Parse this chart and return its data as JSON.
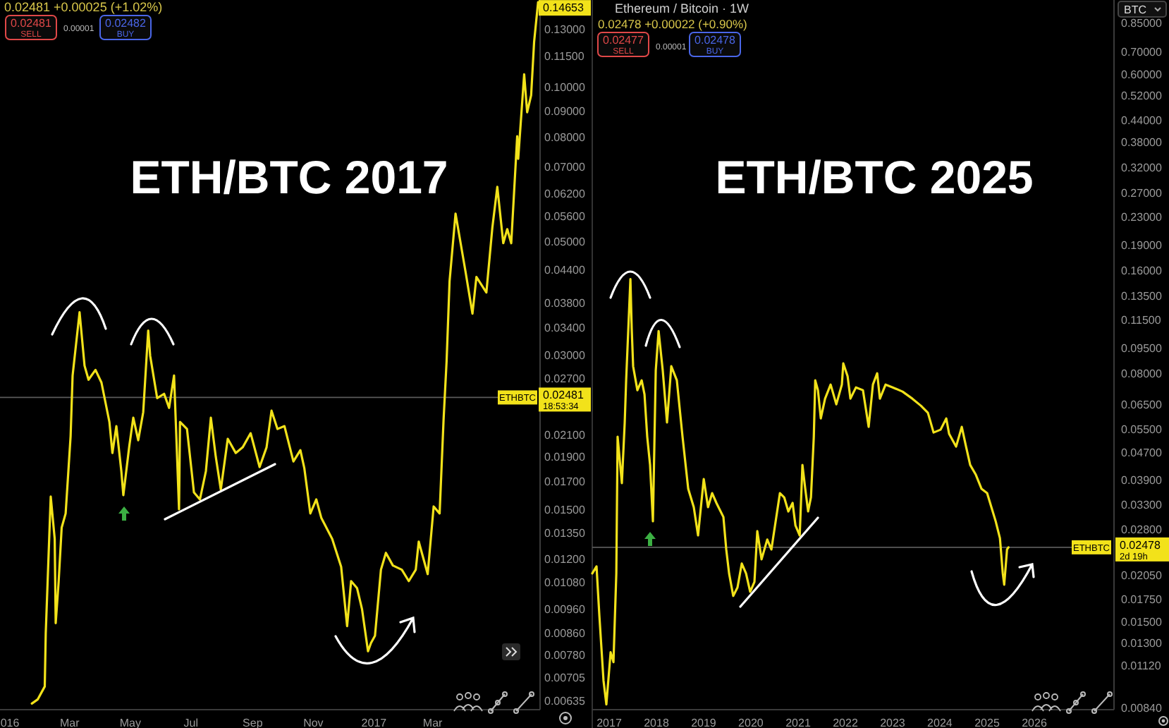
{
  "chart_data": [
    {
      "type": "line",
      "title": "ETH/BTC 2017",
      "log": true,
      "x": [
        "2016-01-23",
        "2016-01-29",
        "2016-02-05",
        "2016-02-06",
        "2016-02-11",
        "2016-02-15",
        "2016-02-16",
        "2016-02-19",
        "2016-02-22",
        "2016-02-26",
        "2016-03-02",
        "2016-03-04",
        "2016-03-11",
        "2016-03-16",
        "2016-03-20",
        "2016-03-27",
        "2016-04-02",
        "2016-04-10",
        "2016-04-13",
        "2016-04-17",
        "2016-04-22",
        "2016-04-24",
        "2016-04-30",
        "2016-05-04",
        "2016-05-09",
        "2016-05-14",
        "2016-05-19",
        "2016-05-21",
        "2016-05-28",
        "2016-06-04",
        "2016-06-09",
        "2016-06-14",
        "2016-06-19",
        "2016-06-20",
        "2016-06-27",
        "2016-07-04",
        "2016-07-10",
        "2016-07-16",
        "2016-07-21",
        "2016-07-26",
        "2016-07-31",
        "2016-08-07",
        "2016-08-15",
        "2016-08-22",
        "2016-08-30",
        "2016-09-08",
        "2016-09-15",
        "2016-09-20",
        "2016-09-26",
        "2016-10-03",
        "2016-10-12",
        "2016-10-19",
        "2016-10-23",
        "2016-10-29",
        "2016-11-04",
        "2016-11-09",
        "2016-11-20",
        "2016-11-29",
        "2016-12-05",
        "2016-12-09",
        "2016-12-15",
        "2016-12-20",
        "2016-12-26",
        "2016-12-29",
        "2017-01-02",
        "2017-01-08",
        "2017-01-13",
        "2017-01-20",
        "2017-01-29",
        "2017-02-05",
        "2017-02-12",
        "2017-02-15",
        "2017-02-24",
        "2017-03-02",
        "2017-03-08",
        "2017-03-12",
        "2017-03-15",
        "2017-03-18",
        "2017-03-24",
        "2017-04-03",
        "2017-04-10",
        "2017-04-14",
        "2017-04-24",
        "2017-04-30",
        "2017-05-05",
        "2017-05-11",
        "2017-05-15",
        "2017-05-19",
        "2017-05-25",
        "2017-05-26",
        "2017-06-01",
        "2017-06-04",
        "2017-06-08",
        "2017-06-11",
        "2017-06-15"
      ],
      "series": [
        {
          "color": "#f2e21a",
          "values": [
            0.00627,
            0.00639,
            0.00677,
            0.00861,
            0.01589,
            0.01314,
            0.009,
            0.01087,
            0.01382,
            0.01473,
            0.02086,
            0.02738,
            0.03639,
            0.02862,
            0.02687,
            0.02808,
            0.02653,
            0.02222,
            0.01933,
            0.02181,
            0.01781,
            0.01599,
            0.01995,
            0.02265,
            0.02047,
            0.02323,
            0.03352,
            0.02991,
            0.02474,
            0.02522,
            0.02367,
            0.02738,
            0.01501,
            0.02222,
            0.02153,
            0.01619,
            0.01569,
            0.01781,
            0.02265,
            0.01897,
            0.0164,
            0.0206,
            0.01933,
            0.01983,
            0.02113,
            0.01815,
            0.01983,
            0.02338,
            0.02153,
            0.02181,
            0.01861,
            0.01958,
            0.01804,
            0.01473,
            0.01569,
            0.01445,
            0.01314,
            0.01159,
            0.00888,
            0.01087,
            0.01053,
            0.00958,
            0.00793,
            0.00823,
            0.0085,
            0.01144,
            0.01234,
            0.01166,
            0.01144,
            0.01087,
            0.01144,
            0.01298,
            0.01122,
            0.0152,
            0.01473,
            0.02251,
            0.02916,
            0.04183,
            0.05667,
            0.04372,
            0.03616,
            0.04263,
            0.03976,
            0.05319,
            0.0639,
            0.04962,
            0.05286,
            0.04962,
            0.08024,
            0.07252,
            0.10599,
            0.08936,
            0.0964,
            0.12258,
            0.14653
          ]
        }
      ],
      "xlim": [
        "2015-12-22",
        "2017-06-17"
      ],
      "xticks": [
        {
          "value": "2016-01-01",
          "label": "016"
        },
        {
          "value": "2016-03-01",
          "label": "Mar"
        },
        {
          "value": "2016-05-01",
          "label": "May"
        },
        {
          "value": "2016-07-01",
          "label": "Jul"
        },
        {
          "value": "2016-09-01",
          "label": "Sep"
        },
        {
          "value": "2016-11-01",
          "label": "Nov"
        },
        {
          "value": "2017-01-01",
          "label": "2017"
        },
        {
          "value": "2017-03-01",
          "label": "Mar"
        }
      ],
      "ylim": [
        0.0061,
        0.148
      ],
      "yticks": [
        {
          "value": 0.13,
          "label": "0.13000"
        },
        {
          "value": 0.115,
          "label": "0.11500"
        },
        {
          "value": 0.1,
          "label": "0.10000"
        },
        {
          "value": 0.09,
          "label": "0.09000"
        },
        {
          "value": 0.08,
          "label": "0.08000"
        },
        {
          "value": 0.07,
          "label": "0.07000"
        },
        {
          "value": 0.062,
          "label": "0.06200"
        },
        {
          "value": 0.056,
          "label": "0.05600"
        },
        {
          "value": 0.05,
          "label": "0.05000"
        },
        {
          "value": 0.044,
          "label": "0.04400"
        },
        {
          "value": 0.038,
          "label": "0.03800"
        },
        {
          "value": 0.034,
          "label": "0.03400"
        },
        {
          "value": 0.03,
          "label": "0.03000"
        },
        {
          "value": 0.027,
          "label": "0.02700"
        },
        {
          "value": 0.021,
          "label": "0.02100"
        },
        {
          "value": 0.019,
          "label": "0.01900"
        },
        {
          "value": 0.017,
          "label": "0.01700"
        },
        {
          "value": 0.015,
          "label": "0.01500"
        },
        {
          "value": 0.0135,
          "label": "0.01350"
        },
        {
          "value": 0.012,
          "label": "0.01200"
        },
        {
          "value": 0.0108,
          "label": "0.01080"
        },
        {
          "value": 0.0096,
          "label": "0.00960"
        },
        {
          "value": 0.0086,
          "label": "0.00860"
        },
        {
          "value": 0.0078,
          "label": "0.00780"
        },
        {
          "value": 0.00705,
          "label": "0.00705"
        },
        {
          "value": 0.00635,
          "label": "0.00635"
        }
      ],
      "ref_lines": [
        {
          "axis": "y",
          "value": 0.02481,
          "label": "ETHBTC"
        }
      ],
      "annotations": [
        "0.02481 +0.00025 (+1.02%)",
        "0.02481",
        "SELL",
        "0.00001",
        "0.02482",
        "BUY",
        "18:53:34",
        {
          "text": "0.14653",
          "x": "2017-06-15",
          "y": 0.14653
        }
      ]
    },
    {
      "type": "line",
      "title": "ETH/BTC 2025",
      "log": true,
      "x": [
        "2016-08-23",
        "2016-09-25",
        "2016-10-17",
        "2016-11-18",
        "2016-12-10",
        "2017-01-12",
        "2017-02-03",
        "2017-02-25",
        "2017-03-07",
        "2017-04-09",
        "2017-05-01",
        "2017-05-12",
        "2017-06-14",
        "2017-06-24",
        "2017-07-05",
        "2017-08-07",
        "2017-09-09",
        "2017-10-01",
        "2017-10-22",
        "2017-11-13",
        "2017-12-05",
        "2017-12-16",
        "2017-12-27",
        "2018-01-18",
        "2018-02-19",
        "2018-03-24",
        "2018-04-26",
        "2018-06-08",
        "2018-07-22",
        "2018-09-04",
        "2018-10-17",
        "2018-11-19",
        "2019-01-02",
        "2019-02-04",
        "2019-03-08",
        "2019-04-10",
        "2019-06-03",
        "2019-06-25",
        "2019-07-17",
        "2019-08-18",
        "2019-09-20",
        "2019-10-23",
        "2019-11-25",
        "2019-12-27",
        "2020-01-29",
        "2020-02-20",
        "2020-03-24",
        "2020-05-07",
        "2020-06-08",
        "2020-08-13",
        "2020-09-15",
        "2020-10-17",
        "2020-11-19",
        "2020-12-11",
        "2021-01-13",
        "2021-02-03",
        "2021-02-25",
        "2021-03-19",
        "2021-04-10",
        "2021-05-02",
        "2021-05-13",
        "2021-06-03",
        "2021-06-25",
        "2021-07-28",
        "2021-09-09",
        "2021-10-23",
        "2021-12-05",
        "2021-12-16",
        "2022-01-18",
        "2022-02-09",
        "2022-03-24",
        "2022-05-17",
        "2022-06-30",
        "2022-08-02",
        "2022-09-04",
        "2022-09-25",
        "2022-11-08",
        "2023-01-02",
        "2023-03-19",
        "2023-06-03",
        "2023-08-08",
        "2023-10-01",
        "2023-11-14",
        "2024-01-07",
        "2024-02-20",
        "2024-03-13",
        "2024-05-06",
        "2024-06-19",
        "2024-07-22",
        "2024-08-23",
        "2024-10-06",
        "2024-11-19",
        "2025-01-01",
        "2025-02-03",
        "2025-03-08",
        "2025-04-10",
        "2025-05-02",
        "2025-05-13",
        "2025-06-04",
        "2025-06-15"
      ],
      "series": [
        {
          "color": "#f2e21a",
          "values": [
            0.02078,
            0.02179,
            0.01563,
            0.0101,
            0.0086,
            0.01222,
            0.01143,
            0.02078,
            0.05222,
            0.03818,
            0.05744,
            0.07635,
            0.151,
            0.10847,
            0.08394,
            0.07143,
            0.07635,
            0.06942,
            0.05222,
            0.04317,
            0.02954,
            0.04885,
            0.08158,
            0.10643,
            0.08158,
            0.05744,
            0.08394,
            0.07635,
            0.05222,
            0.03673,
            0.03247,
            0.02685,
            0.03926,
            0.03247,
            0.0357,
            0.03341,
            0.0304,
            0.02442,
            0.02078,
            0.01786,
            0.01891,
            0.02221,
            0.02078,
            0.01836,
            0.01963,
            0.02763,
            0.02285,
            0.02611,
            0.02442,
            0.0357,
            0.0347,
            0.03156,
            0.03341,
            0.0287,
            0.02685,
            0.04317,
            0.03673,
            0.03156,
            0.0347,
            0.05222,
            0.07635,
            0.07143,
            0.05907,
            0.06746,
            0.07419,
            0.06495,
            0.07419,
            0.08555,
            0.07854,
            0.06746,
            0.07279,
            0.07143,
            0.0558,
            0.07419,
            0.08005,
            0.06746,
            0.07419,
            0.07279,
            0.07075,
            0.06746,
            0.06434,
            0.06137,
            0.05371,
            0.05474,
            0.05907,
            0.05321,
            0.04885,
            0.0558,
            0.04885,
            0.04317,
            0.0404,
            0.03673,
            0.0357,
            0.03247,
            0.02954,
            0.02636,
            0.02078,
            0.01926,
            0.02442,
            0.02478
          ]
        }
      ],
      "xlim": [
        "2016-08-23",
        "2027-09-09"
      ],
      "xticks": [
        {
          "value": "2017-01-01",
          "label": "2017"
        },
        {
          "value": "2018-01-01",
          "label": "2018"
        },
        {
          "value": "2019-01-01",
          "label": "2019"
        },
        {
          "value": "2020-01-01",
          "label": "2020"
        },
        {
          "value": "2021-01-01",
          "label": "2021"
        },
        {
          "value": "2022-01-01",
          "label": "2022"
        },
        {
          "value": "2023-01-01",
          "label": "2023"
        },
        {
          "value": "2024-01-01",
          "label": "2024"
        },
        {
          "value": "2025-01-01",
          "label": "2025"
        },
        {
          "value": "2026-01-01",
          "label": "2026"
        }
      ],
      "ylim": [
        0.0083,
        0.99
      ],
      "yticks": [
        {
          "value": 0.85,
          "label": "0.85000"
        },
        {
          "value": 0.7,
          "label": "0.70000"
        },
        {
          "value": 0.6,
          "label": "0.60000"
        },
        {
          "value": 0.52,
          "label": "0.52000"
        },
        {
          "value": 0.44,
          "label": "0.44000"
        },
        {
          "value": 0.38,
          "label": "0.38000"
        },
        {
          "value": 0.32,
          "label": "0.32000"
        },
        {
          "value": 0.27,
          "label": "0.27000"
        },
        {
          "value": 0.23,
          "label": "0.23000"
        },
        {
          "value": 0.19,
          "label": "0.19000"
        },
        {
          "value": 0.16,
          "label": "0.16000"
        },
        {
          "value": 0.135,
          "label": "0.13500"
        },
        {
          "value": 0.115,
          "label": "0.11500"
        },
        {
          "value": 0.095,
          "label": "0.09500"
        },
        {
          "value": 0.08,
          "label": "0.08000"
        },
        {
          "value": 0.065,
          "label": "0.06500"
        },
        {
          "value": 0.055,
          "label": "0.05500"
        },
        {
          "value": 0.047,
          "label": "0.04700"
        },
        {
          "value": 0.039,
          "label": "0.03900"
        },
        {
          "value": 0.033,
          "label": "0.03300"
        },
        {
          "value": 0.028,
          "label": "0.02800"
        },
        {
          "value": 0.0205,
          "label": "0.02050"
        },
        {
          "value": 0.0175,
          "label": "0.01750"
        },
        {
          "value": 0.015,
          "label": "0.01500"
        },
        {
          "value": 0.013,
          "label": "0.01300"
        },
        {
          "value": 0.0112,
          "label": "0.01120"
        },
        {
          "value": 0.0084,
          "label": "0.00840"
        }
      ],
      "ref_lines": [
        {
          "axis": "y",
          "value": 0.02478,
          "label": "ETHBTC"
        }
      ],
      "annotations": [
        "Ethereum / Bitcoin · 1W",
        "0.02478 +0.00022 (+0.90%)",
        "0.02477",
        "SELL",
        "0.00001",
        "0.02478",
        "BUY",
        "2d 19h",
        "BTC"
      ]
    }
  ]
}
